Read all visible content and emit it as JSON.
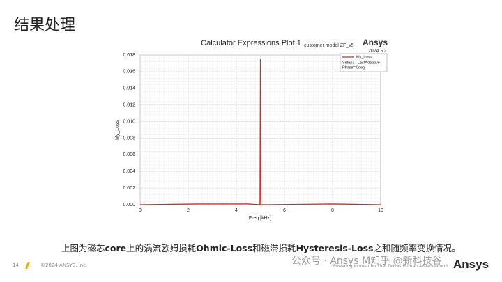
{
  "slide_title": "结果处理",
  "caption": [
    "上图为磁芯",
    "core",
    "上的涡流欧姆损耗",
    "Ohmic-Loss",
    "和磁滞损耗",
    "Hysteresis-Loss",
    "之和随频率变换情况。"
  ],
  "footer": {
    "page": "14",
    "copyright": "©2024 ANSYS, Inc.",
    "tagline": "Powering Innovation That Drives Human Advancement",
    "logo": "Ansys"
  },
  "watermark": "公众号 · Ansys M知乎 @新科技谷",
  "chart_data": {
    "type": "line",
    "title": "Calculator Expressions Plot 1",
    "subtitle": "customer model ZF_v5",
    "brand": "Ansys",
    "version": "2024 R2",
    "x_label": "Freq [kHz]",
    "y_label": "My_Loss",
    "x": [
      0,
      2.5,
      3,
      3.5,
      4.5,
      4.98,
      5,
      5.02,
      8,
      10
    ],
    "series": [
      {
        "name": "My_Loss",
        "color": "#d62728",
        "values": [
          0,
          0.0001,
          0.0001,
          0.0001,
          0.0001,
          0,
          0.0175,
          0,
          0.0001,
          0
        ]
      }
    ],
    "legend_details": [
      "Setup1 : LastAdaptive",
      "Phase='0deg'"
    ],
    "legend": "top-right",
    "xlim": [
      0,
      10
    ],
    "xticks": [
      0,
      2,
      4,
      6,
      8,
      10
    ],
    "ylim": [
      0,
      0.018
    ],
    "yticks": [
      {
        "value": 0,
        "label": "0.000"
      },
      0.002,
      0.004,
      0.006,
      0.008,
      {
        "value": 0.01,
        "label": "0.010"
      },
      0.012,
      0.014,
      0.016,
      0.018
    ],
    "grid": true
  }
}
